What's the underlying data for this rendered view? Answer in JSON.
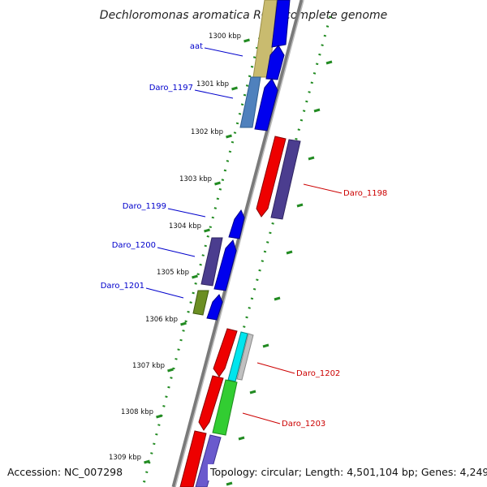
{
  "title": "Dechloromonas aromatica RCB, complete genome",
  "footer": {
    "accession": "Accession: NC_007298",
    "topology": "Topology: circular; Length: 4,501,104 bp; Genes: 4,249"
  },
  "ticks": [
    "1300 kbp",
    "1301 kbp",
    "1302 kbp",
    "1303 kbp",
    "1304 kbp",
    "1305 kbp",
    "1306 kbp",
    "1307 kbp",
    "1308 kbp",
    "1309 kbp"
  ],
  "gene_labels": [
    {
      "text": "aat",
      "strand": "forward",
      "color": "#0000cc"
    },
    {
      "text": "Daro_1197",
      "strand": "forward",
      "color": "#0000cc"
    },
    {
      "text": "Daro_1198",
      "strand": "reverse",
      "color": "#cc0000"
    },
    {
      "text": "Daro_1199",
      "strand": "forward",
      "color": "#0000cc"
    },
    {
      "text": "Daro_1200",
      "strand": "forward",
      "color": "#0000cc"
    },
    {
      "text": "Daro_1201",
      "strand": "forward",
      "color": "#0000cc"
    },
    {
      "text": "Daro_1202",
      "strand": "reverse",
      "color": "#cc0000"
    },
    {
      "text": "Daro_1203",
      "strand": "reverse",
      "color": "#cc0000"
    }
  ],
  "colors": {
    "backbone": "#888888",
    "tick_dots": "#228b22",
    "forward_label": "#0000cc",
    "reverse_label": "#cc0000"
  }
}
